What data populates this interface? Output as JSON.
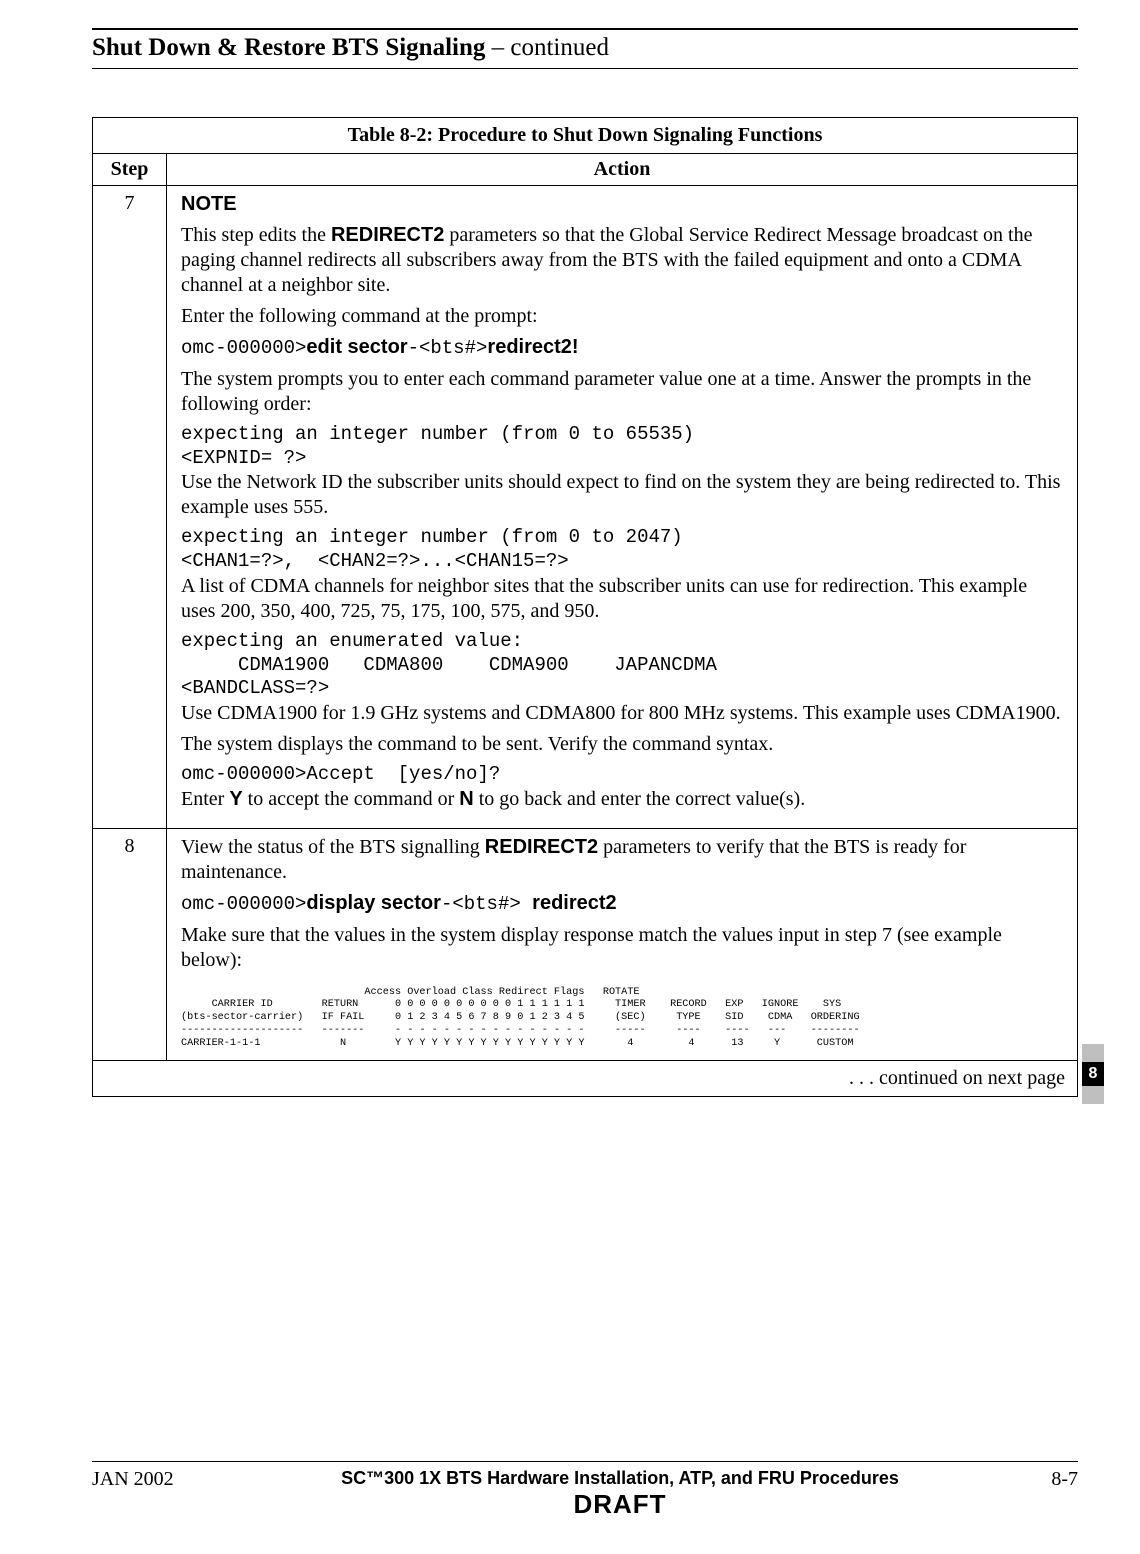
{
  "header": {
    "title_bold": "Shut Down & Restore BTS Signaling",
    "title_rest": " – continued"
  },
  "table": {
    "caption_bold": "Table 8-2:",
    "caption_rest": " Procedure to Shut Down Signaling Functions",
    "columns": {
      "step": "Step",
      "action": "Action"
    },
    "continued": ". . . continued on next page"
  },
  "step7": {
    "num": "7",
    "note": "NOTE",
    "p1a": "This step edits the ",
    "p1b": "REDIRECT2",
    "p1c": " parameters so that the Global Service Redirect Message broadcast on the paging channel redirects all subscribers away from the BTS with the failed equipment and onto a CDMA channel at a neighbor site.",
    "p2": "Enter the following command at the prompt:",
    "cmd1_pre": "omc-000000>",
    "cmd1_b1": "edit sector",
    "cmd1_mid": "-<bts#>",
    "cmd1_b2": "redirect2!",
    "p3": "The system prompts you to enter each command parameter value one at a time.  Answer the prompts in the following order:",
    "block1": "expecting an integer number (from 0 to 65535)\n<EXPNID= ?>",
    "p4": "Use the Network ID the subscriber units should expect to find on the system they are being redirected to.  This example uses 555.",
    "block2": "expecting an integer number (from 0 to 2047)\n<CHAN1=?>,  <CHAN2=?>...<CHAN15=?>",
    "p5": "A list of CDMA channels for neighbor sites that the subscriber units can use for redirection.  This example uses 200, 350, 400, 725, 75, 175, 100, 575, and 950.",
    "block3": "expecting an enumerated value:\n     CDMA1900   CDMA800    CDMA900    JAPANCDMA\n<BANDCLASS=?>",
    "p6": "Use CDMA1900 for 1.9 GHz systems and CDMA800 for 800 MHz systems.  This example uses CDMA1900.",
    "p7": "The system displays the command to be sent.  Verify the command syntax.",
    "block4": "omc-000000>Accept  [yes/no]?",
    "p8a": "Enter ",
    "p8y": "Y",
    "p8b": " to accept the command or ",
    "p8n": "N",
    "p8c": " to go back and enter the correct value(s)."
  },
  "step8": {
    "num": "8",
    "p1a": "View the status of the BTS signalling ",
    "p1b": "REDIRECT2",
    "p1c": " parameters to verify that the BTS is ready for maintenance.",
    "cmd_pre": "omc-000000>",
    "cmd_b1": "display sector",
    "cmd_mid": "-<bts#> ",
    "cmd_b2": "redirect2",
    "p2": "Make sure that the values in the system display response match the values input in step 7 (see example below):",
    "listing": "                              Access Overload Class Redirect Flags   ROTATE\n     CARRIER ID        RETURN      0 0 0 0 0 0 0 0 0 0 1 1 1 1 1 1     TIMER    RECORD   EXP   IGNORE    SYS\n(bts-sector-carrier)   IF FAIL     0 1 2 3 4 5 6 7 8 9 0 1 2 3 4 5     (SEC)     TYPE    SID    CDMA   ORDERING\n--------------------   -------     - - - - - - - - - - - - - - - -     -----     ----    ----   ---    --------\nCARRIER-1-1-1             N        Y Y Y Y Y Y Y Y Y Y Y Y Y Y Y Y       4         4      13     Y      CUSTOM"
  },
  "side_tab": "8",
  "footer": {
    "date": "JAN 2002",
    "mid_line": "SC™300 1X BTS Hardware Installation, ATP, and FRU Procedures",
    "draft": "DRAFT",
    "page": "8-7"
  }
}
